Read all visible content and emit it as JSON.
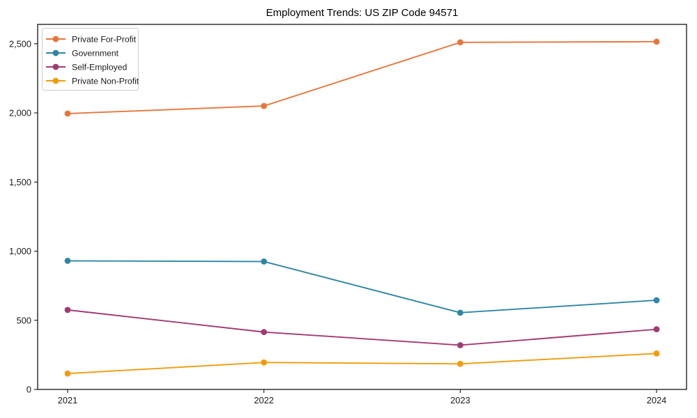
{
  "chart_data": {
    "type": "line",
    "title": "Employment Trends: US ZIP Code 94571",
    "x": [
      "2021",
      "2022",
      "2023",
      "2024"
    ],
    "series": [
      {
        "name": "Private For-Profit",
        "color": "#e6763c",
        "values": [
          1995,
          2050,
          2510,
          2515
        ]
      },
      {
        "name": "Government",
        "color": "#2e86a5",
        "values": [
          930,
          925,
          555,
          645
        ]
      },
      {
        "name": "Self-Employed",
        "color": "#a23b72",
        "values": [
          575,
          415,
          320,
          435
        ]
      },
      {
        "name": "Private Non-Profit",
        "color": "#f09c0a",
        "values": [
          115,
          195,
          185,
          260
        ]
      }
    ],
    "xlabel": "",
    "ylabel": "",
    "ylim": [
      0,
      2640
    ],
    "yticks": [
      0,
      500,
      1000,
      1500,
      2000,
      2500
    ],
    "ytick_labels": [
      "0",
      "500",
      "1,000",
      "1,500",
      "2,000",
      "2,500"
    ],
    "grid": false,
    "legend_position": "upper-left",
    "marker": "circle",
    "axis_color": "#000000",
    "text_color": "#1a1a1a",
    "legend_border_color": "#cccccc",
    "background": "#ffffff"
  }
}
